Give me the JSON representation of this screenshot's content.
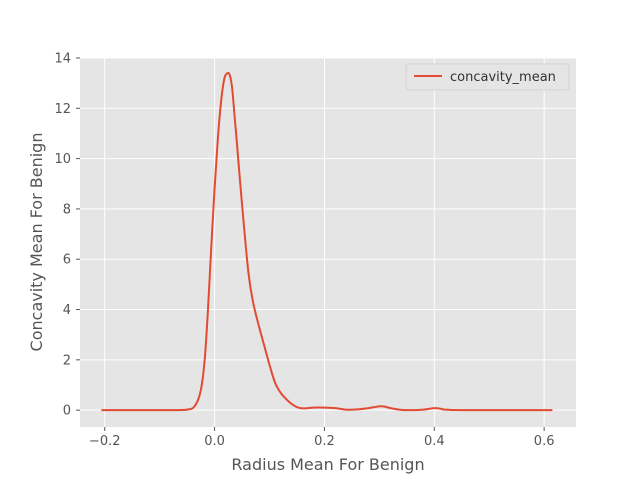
{
  "chart_data": {
    "type": "line",
    "xlabel": "Radius Mean For Benign",
    "ylabel": "Concavity Mean For Benign",
    "xlim": [
      -0.245,
      0.658
    ],
    "ylim": [
      -0.67,
      14.0
    ],
    "xticks": [
      -0.2,
      0.0,
      0.2,
      0.4,
      0.6
    ],
    "xtick_labels": [
      "−0.2",
      "0.0",
      "0.2",
      "0.4",
      "0.6"
    ],
    "yticks": [
      0,
      2,
      4,
      6,
      8,
      10,
      12,
      14
    ],
    "ytick_labels": [
      "0",
      "2",
      "4",
      "6",
      "8",
      "10",
      "12",
      "14"
    ],
    "grid": true,
    "legend": {
      "position": "top-right"
    },
    "series": [
      {
        "name": "concavity_mean",
        "color": "#e24a33",
        "x": [
          -0.206,
          -0.1,
          -0.05,
          -0.035,
          -0.025,
          -0.018,
          -0.012,
          -0.006,
          0.0,
          0.006,
          0.012,
          0.018,
          0.024,
          0.028,
          0.032,
          0.036,
          0.04,
          0.046,
          0.054,
          0.062,
          0.07,
          0.08,
          0.09,
          0.1,
          0.11,
          0.12,
          0.13,
          0.14,
          0.15,
          0.16,
          0.17,
          0.18,
          0.2,
          0.22,
          0.24,
          0.26,
          0.28,
          0.3,
          0.31,
          0.32,
          0.34,
          0.36,
          0.38,
          0.4,
          0.41,
          0.42,
          0.45,
          0.5,
          0.55,
          0.615
        ],
        "y": [
          0.0,
          0.0,
          0.02,
          0.2,
          0.8,
          2.0,
          4.0,
          6.5,
          8.8,
          10.8,
          12.3,
          13.2,
          13.4,
          13.3,
          12.8,
          11.8,
          10.8,
          9.2,
          7.2,
          5.4,
          4.3,
          3.4,
          2.6,
          1.8,
          1.1,
          0.7,
          0.45,
          0.25,
          0.12,
          0.07,
          0.08,
          0.1,
          0.1,
          0.08,
          0.02,
          0.03,
          0.08,
          0.15,
          0.14,
          0.08,
          0.01,
          0.0,
          0.02,
          0.08,
          0.06,
          0.02,
          0.0,
          0.0,
          0.0,
          0.0
        ]
      }
    ]
  }
}
